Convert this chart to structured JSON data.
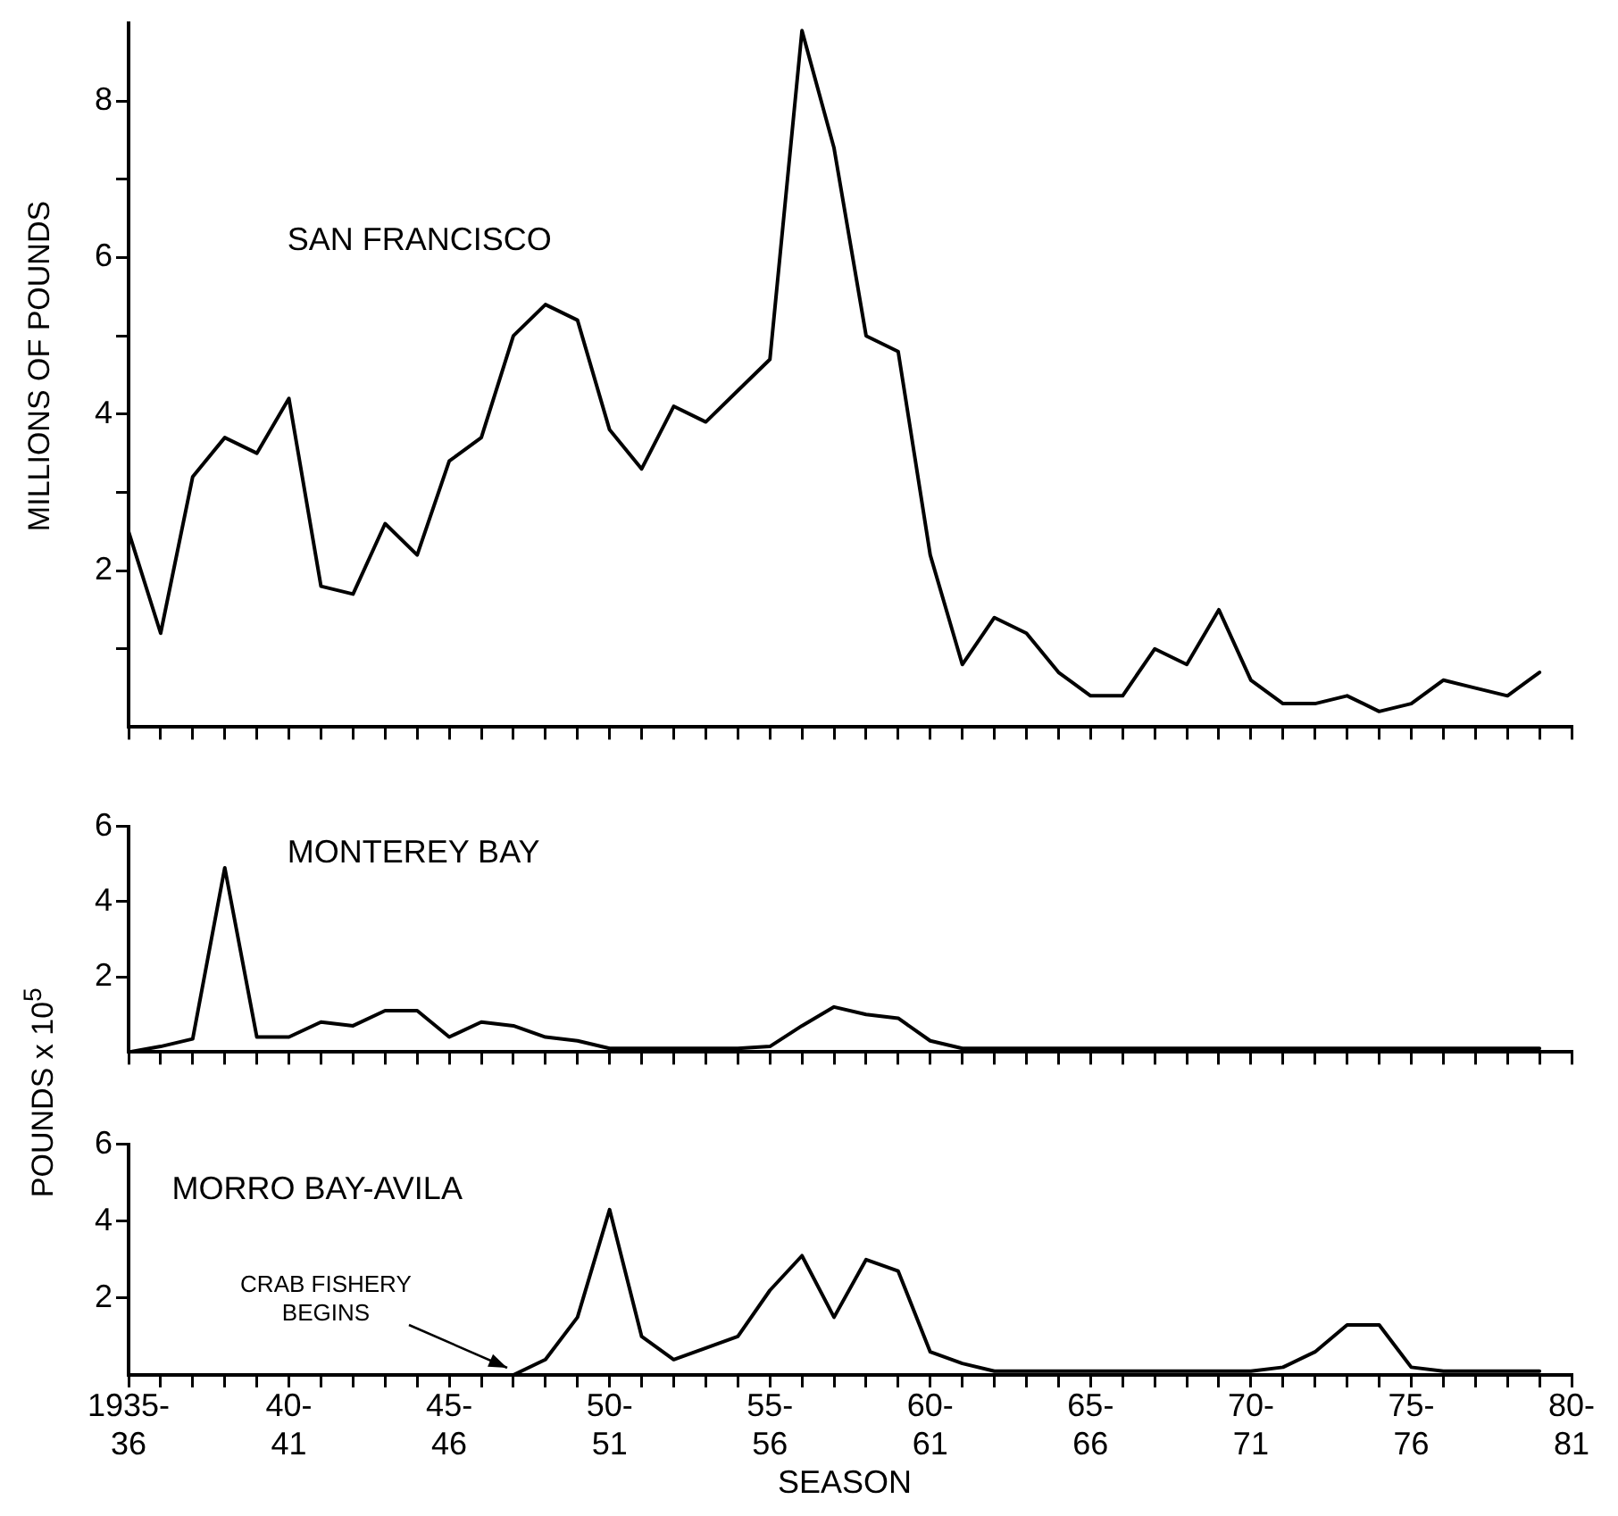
{
  "chart_data": [
    {
      "type": "line",
      "title": "SAN FRANCISCO",
      "ylabel": "MILLIONS OF POUNDS",
      "categories": [
        null,
        null,
        null,
        null,
        null,
        null,
        null,
        null,
        null,
        null,
        null,
        null,
        null,
        null,
        null,
        null,
        null,
        null,
        null,
        null,
        null,
        null,
        null,
        null,
        null,
        null,
        null,
        null,
        null,
        null,
        null,
        null,
        null,
        null,
        null,
        null,
        null,
        null,
        null,
        null,
        null,
        null,
        null,
        null,
        null,
        null
      ],
      "series": [
        {
          "color": "#000000",
          "values": [
            2.5,
            1.2,
            3.2,
            3.7,
            3.5,
            4.2,
            1.8,
            1.7,
            2.6,
            2.2,
            3.4,
            3.7,
            5.0,
            5.4,
            5.2,
            3.8,
            3.3,
            4.1,
            3.9,
            4.3,
            4.7,
            8.9,
            7.4,
            5.0,
            4.8,
            2.2,
            0.8,
            1.4,
            1.2,
            0.7,
            0.4,
            0.4,
            1.0,
            0.8,
            1.5,
            0.6,
            0.3,
            0.3,
            0.4,
            0.2,
            0.3,
            0.6,
            0.5,
            0.4,
            0.7,
            null
          ]
        }
      ],
      "ylim": [
        0,
        9
      ],
      "yticks": [
        {
          "value": 1,
          "label": null
        },
        2,
        {
          "value": 3,
          "label": null
        },
        4,
        {
          "value": 5,
          "label": null
        },
        6,
        {
          "value": 7,
          "label": null
        },
        8
      ],
      "tick_labels": "y",
      "grid": false,
      "legend": false,
      "marker": "none",
      "line_style": "solid"
    },
    {
      "type": "line",
      "title": "MONTEREY BAY",
      "ylabel": "POUNDS x 10$^{5}$",
      "categories": [
        null,
        null,
        null,
        null,
        null,
        null,
        null,
        null,
        null,
        null,
        null,
        null,
        null,
        null,
        null,
        null,
        null,
        null,
        null,
        null,
        null,
        null,
        null,
        null,
        null,
        null,
        null,
        null,
        null,
        null,
        null,
        null,
        null,
        null,
        null,
        null,
        null,
        null,
        null,
        null,
        null,
        null,
        null,
        null,
        null,
        null
      ],
      "series": [
        {
          "color": "#000000",
          "values": [
            0,
            0.15,
            0.35,
            4.9,
            0.4,
            0.4,
            0.8,
            0.7,
            1.1,
            1.1,
            0.4,
            0.8,
            0.7,
            0.4,
            0.3,
            0.1,
            0.1,
            0.1,
            0.1,
            0.1,
            0.15,
            0.7,
            1.2,
            1.0,
            0.9,
            0.3,
            0.1,
            0.1,
            0.1,
            0.1,
            0.1,
            0.1,
            0.1,
            0.1,
            0.1,
            0.1,
            0.1,
            0.1,
            0.1,
            0.1,
            0.1,
            0.1,
            0.1,
            0.1,
            0.1,
            null
          ]
        }
      ],
      "ylim": [
        0,
        6
      ],
      "yticks": [
        2,
        4,
        6
      ],
      "tick_labels": "y",
      "grid": false,
      "legend": false,
      "marker": "none",
      "line_style": "solid"
    },
    {
      "type": "line",
      "title": "MORRO BAY-AVILA",
      "xlabel": "SEASON",
      "categories": [
        "1935-\n36",
        null,
        null,
        null,
        null,
        "40-\n41",
        null,
        null,
        null,
        null,
        "45-\n46",
        null,
        null,
        null,
        null,
        "50-\n51",
        null,
        null,
        null,
        null,
        "55-\n56",
        null,
        null,
        null,
        null,
        "60-\n61",
        null,
        null,
        null,
        null,
        "65-\n66",
        null,
        null,
        null,
        null,
        "70-\n71",
        null,
        null,
        null,
        null,
        "75-\n76",
        null,
        null,
        null,
        null,
        "80-\n81"
      ],
      "series": [
        {
          "color": "#000000",
          "values": [
            null,
            null,
            null,
            null,
            null,
            null,
            null,
            null,
            null,
            null,
            null,
            null,
            0,
            0.4,
            1.5,
            4.3,
            1.0,
            0.4,
            0.7,
            1.0,
            2.2,
            3.1,
            1.5,
            3.0,
            2.7,
            0.6,
            0.3,
            0.1,
            0.1,
            0.1,
            0.1,
            0.1,
            0.1,
            0.1,
            0.1,
            0.1,
            0.2,
            0.6,
            1.3,
            1.3,
            0.2,
            0.1,
            0.1,
            0.1,
            0.1,
            null
          ]
        }
      ],
      "ylim": [
        0,
        6
      ],
      "yticks": [
        2,
        4,
        6
      ],
      "annotations": [
        "CRAB FISHERY BEGINS"
      ],
      "grid": false,
      "legend": false,
      "marker": "none",
      "line_style": "solid"
    }
  ]
}
